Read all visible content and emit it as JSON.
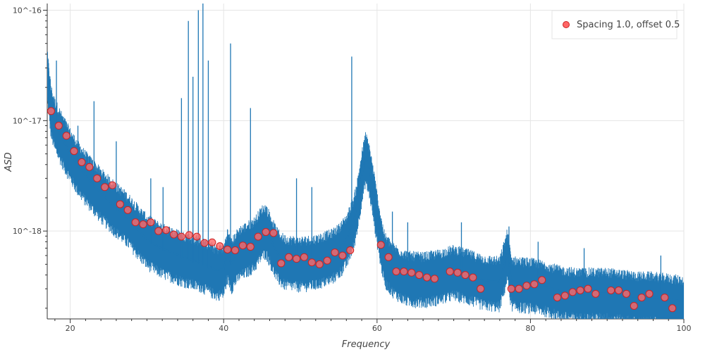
{
  "chart_data": {
    "type": "line",
    "title": "",
    "xlabel": "Frequency",
    "ylabel": "ASD",
    "xlim": [
      17,
      100
    ],
    "ylim": [
      1.6e-19,
      1.15e-16
    ],
    "y_scale": "log",
    "grid": true,
    "legend_position": "top-right",
    "x_ticks": [
      {
        "value": 20,
        "label": "20"
      },
      {
        "value": 40,
        "label": "40"
      },
      {
        "value": 60,
        "label": "60"
      },
      {
        "value": 80,
        "label": "80"
      },
      {
        "value": 100,
        "label": "100"
      }
    ],
    "y_ticks": [
      {
        "value": 1e-16,
        "label": "10^-16"
      },
      {
        "value": 1e-17,
        "label": "10^-17"
      },
      {
        "value": 1e-18,
        "label": "10^-18"
      }
    ],
    "series": [
      {
        "kind": "line",
        "color": "#1f77b4",
        "x": [
          17,
          17.5,
          18,
          19,
          20,
          21,
          22,
          23,
          24,
          25,
          26,
          27,
          28,
          29,
          30,
          31,
          32,
          33,
          34,
          35,
          36,
          37,
          38,
          39,
          40,
          40.5,
          41,
          41.5,
          42,
          43,
          44,
          44.5,
          45,
          45.5,
          46,
          46.5,
          47,
          47.5,
          48,
          50,
          52,
          54,
          55,
          56,
          57,
          57.5,
          58,
          58.5,
          59,
          59.5,
          60,
          60.5,
          61,
          62,
          63,
          64,
          66,
          68,
          70,
          72,
          74,
          76,
          77,
          77.5,
          78,
          80,
          82,
          84,
          86,
          88,
          90,
          92,
          94,
          96,
          98,
          100
        ],
        "y": [
          2.5e-17,
          1.2e-17,
          9e-18,
          6.5e-18,
          4.8e-18,
          3.7e-18,
          3e-18,
          2.5e-18,
          2.1e-18,
          1.8e-18,
          1.55e-18,
          1.35e-18,
          1.15e-18,
          9.5e-19,
          8e-19,
          7.2e-19,
          6.6e-19,
          6.2e-19,
          5.8e-19,
          5.5e-19,
          5.2e-19,
          5e-19,
          4.6e-19,
          4.2e-19,
          4.3e-19,
          6e-19,
          4.8e-19,
          5.5e-19,
          6.2e-19,
          6.8e-19,
          7.5e-19,
          8.5e-19,
          9.6e-19,
          1e-18,
          8.5e-19,
          7e-19,
          6e-19,
          5.5e-19,
          5.2e-19,
          5e-19,
          5.2e-19,
          5.8e-19,
          6.5e-19,
          8e-19,
          1.2e-18,
          1.8e-18,
          3e-18,
          4.5e-18,
          3.5e-18,
          2.2e-18,
          1.3e-18,
          8e-19,
          5.5e-19,
          4.5e-19,
          4e-19,
          3.7e-19,
          3.6e-19,
          3.8e-19,
          4.2e-19,
          3.8e-19,
          3.4e-19,
          3.3e-19,
          6e-19,
          3.4e-19,
          3.3e-19,
          3.2e-19,
          3e-19,
          2.7e-19,
          2.6e-19,
          2.6e-19,
          2.6e-19,
          2.5e-19,
          2.4e-19,
          2.4e-19,
          2.3e-19,
          2.2e-19
        ]
      },
      {
        "kind": "scatter",
        "name": "Spacing 1.0, offset 0.5",
        "color": "#ff6666",
        "edge_color": "#cc2222",
        "x": [
          17.5,
          18.5,
          19.5,
          20.5,
          21.5,
          22.5,
          23.5,
          24.5,
          25.5,
          26.5,
          27.5,
          28.5,
          29.5,
          30.5,
          31.5,
          32.5,
          33.5,
          34.5,
          35.5,
          36.5,
          37.5,
          38.5,
          39.5,
          40.5,
          41.5,
          42.5,
          43.5,
          44.5,
          45.5,
          46.5,
          47.5,
          48.5,
          49.5,
          50.5,
          51.5,
          52.5,
          53.5,
          54.5,
          55.5,
          56.5,
          60.5,
          61.5,
          62.5,
          63.5,
          64.5,
          65.5,
          66.5,
          67.5,
          69.5,
          70.5,
          71.5,
          72.5,
          73.5,
          77.5,
          78.5,
          79.5,
          80.5,
          81.5,
          83.5,
          84.5,
          85.5,
          86.5,
          87.5,
          88.5,
          90.5,
          91.5,
          92.5,
          93.5,
          94.5,
          95.5,
          97.5,
          98.5
        ],
        "y": [
          1.22e-17,
          9e-18,
          7.3e-18,
          5.3e-18,
          4.2e-18,
          3.8e-18,
          3e-18,
          2.5e-18,
          2.6e-18,
          1.75e-18,
          1.55e-18,
          1.2e-18,
          1.15e-18,
          1.2e-18,
          1e-18,
          1.02e-18,
          9.3e-19,
          8.9e-19,
          9.2e-19,
          8.9e-19,
          7.8e-19,
          7.9e-19,
          7.3e-19,
          6.8e-19,
          6.7e-19,
          7.4e-19,
          7.2e-19,
          8.9e-19,
          9.8e-19,
          9.6e-19,
          5.1e-19,
          5.8e-19,
          5.6e-19,
          5.8e-19,
          5.2e-19,
          5e-19,
          5.4e-19,
          6.4e-19,
          6e-19,
          6.7e-19,
          7.5e-19,
          5.8e-19,
          4.3e-19,
          4.3e-19,
          4.2e-19,
          4e-19,
          3.8e-19,
          3.7e-19,
          4.3e-19,
          4.2e-19,
          4e-19,
          3.8e-19,
          3e-19,
          3e-19,
          3e-19,
          3.2e-19,
          3.3e-19,
          3.6e-19,
          2.5e-19,
          2.6e-19,
          2.8e-19,
          2.9e-19,
          3e-19,
          2.7e-19,
          2.9e-19,
          2.9e-19,
          2.7e-19,
          2.1e-19,
          2.5e-19,
          2.7e-19,
          2.5e-19,
          2e-19
        ]
      }
    ],
    "spikes": [
      {
        "x": 17.2,
        "y": 3e-17
      },
      {
        "x": 18.2,
        "y": 3.5e-17
      },
      {
        "x": 21.0,
        "y": 9e-18
      },
      {
        "x": 23.1,
        "y": 1.5e-17
      },
      {
        "x": 26.0,
        "y": 6.5e-18
      },
      {
        "x": 30.5,
        "y": 3e-18
      },
      {
        "x": 32.1,
        "y": 2.5e-18
      },
      {
        "x": 34.5,
        "y": 1.6e-17
      },
      {
        "x": 35.4,
        "y": 8e-17
      },
      {
        "x": 36.0,
        "y": 2.5e-17
      },
      {
        "x": 36.7,
        "y": 1e-16
      },
      {
        "x": 37.3,
        "y": 1.25e-16
      },
      {
        "x": 38.0,
        "y": 3.5e-17
      },
      {
        "x": 40.9,
        "y": 5e-17
      },
      {
        "x": 43.5,
        "y": 1.3e-17
      },
      {
        "x": 49.5,
        "y": 3e-18
      },
      {
        "x": 51.5,
        "y": 2.5e-18
      },
      {
        "x": 56.7,
        "y": 3.8e-17
      },
      {
        "x": 62.0,
        "y": 1.5e-18
      },
      {
        "x": 64.0,
        "y": 1.2e-18
      },
      {
        "x": 71.0,
        "y": 1.2e-18
      },
      {
        "x": 77.2,
        "y": 1.1e-18
      },
      {
        "x": 81.0,
        "y": 8e-19
      },
      {
        "x": 87.0,
        "y": 7e-19
      },
      {
        "x": 97.0,
        "y": 6e-19
      }
    ]
  }
}
